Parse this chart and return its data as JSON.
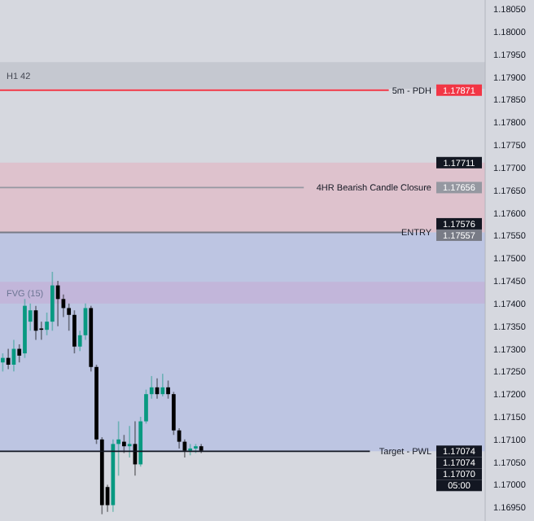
{
  "chart_data": {
    "type": "candlestick",
    "categories": [
      null,
      null,
      null,
      null,
      null,
      null,
      null,
      null,
      null,
      null,
      null,
      null,
      null,
      null,
      null,
      null,
      null,
      null,
      null,
      null,
      null,
      null,
      null,
      null,
      null,
      null,
      null,
      null,
      null,
      null,
      null,
      null,
      null,
      null,
      null,
      null,
      null,
      null,
      null,
      null,
      null,
      null,
      null,
      null,
      null,
      null,
      null,
      null,
      null,
      null,
      null,
      null,
      null,
      null,
      null,
      null,
      null,
      null,
      null,
      null,
      null,
      null,
      null,
      null,
      null,
      null,
      null,
      null,
      null,
      null,
      null,
      null,
      null,
      null,
      null,
      null,
      null,
      null,
      null,
      null,
      null,
      null,
      null,
      null,
      null,
      null,
      null,
      null
    ],
    "ohlc": [
      [
        1.1727,
        1.1729,
        1.1725,
        1.1728
      ],
      [
        1.1728,
        1.173,
        1.17255,
        1.17265
      ],
      [
        1.17265,
        1.1732,
        1.1725,
        1.173
      ],
      [
        1.173,
        1.1731,
        1.1727,
        1.17285
      ],
      [
        1.1729,
        1.1741,
        1.1728,
        1.17395
      ],
      [
        1.1736,
        1.174,
        1.1734,
        1.17385
      ],
      [
        1.17385,
        1.17395,
        1.1732,
        1.1734
      ],
      [
        1.17345,
        1.1736,
        1.1732,
        1.17342
      ],
      [
        1.17342,
        1.1738,
        1.1733,
        1.1736
      ],
      [
        1.1736,
        1.1747,
        1.1734,
        1.1744
      ],
      [
        1.1744,
        1.1745,
        1.1735,
        1.1741
      ],
      [
        1.1741,
        1.1742,
        1.1737,
        1.1739
      ],
      [
        1.1739,
        1.174,
        1.1734,
        1.17375
      ],
      [
        1.17375,
        1.17385,
        1.1729,
        1.17305
      ],
      [
        1.17305,
        1.1734,
        1.17295,
        1.1733
      ],
      [
        1.1733,
        1.174,
        1.1732,
        1.1739
      ],
      [
        1.1739,
        1.17395,
        1.1725,
        1.1726
      ],
      [
        1.1726,
        1.17265,
        1.1709,
        1.171
      ],
      [
        1.171,
        1.17105,
        1.16935,
        1.16955
      ],
      [
        1.16995,
        1.17,
        1.1694,
        1.16955
      ],
      [
        1.16955,
        1.171,
        1.1694,
        1.1709
      ],
      [
        1.1709,
        1.1714,
        1.1702,
        1.171
      ],
      [
        1.17095,
        1.1711,
        1.1707,
        1.17085
      ],
      [
        1.17085,
        1.1713,
        1.1706,
        1.1709
      ],
      [
        1.1709,
        1.1714,
        1.1702,
        1.17045
      ],
      [
        1.17045,
        1.1715,
        1.1704,
        1.1714
      ],
      [
        1.1714,
        1.1721,
        1.17135,
        1.172
      ],
      [
        1.172,
        1.1724,
        1.1719,
        1.17215
      ],
      [
        1.17215,
        1.17235,
        1.1719,
        1.172
      ],
      [
        1.172,
        1.17245,
        1.17195,
        1.17215
      ],
      [
        1.17215,
        1.1723,
        1.1719,
        1.172
      ],
      [
        1.172,
        1.17205,
        1.1711,
        1.1712
      ],
      [
        1.1712,
        1.17125,
        1.1708,
        1.17095
      ],
      [
        1.17095,
        1.171,
        1.1706,
        1.17075
      ],
      [
        1.17075,
        1.1709,
        1.17065,
        1.1708
      ],
      [
        1.1708,
        1.1709,
        1.1707,
        1.17085
      ],
      [
        1.17085,
        1.1709,
        1.1707,
        1.17075
      ],
      null,
      null,
      null,
      null,
      null,
      null,
      null,
      null,
      null,
      null,
      null,
      null,
      null,
      null,
      null,
      null,
      null,
      null,
      null,
      null,
      null,
      null,
      null,
      null,
      null,
      null,
      null,
      null,
      null,
      null,
      null,
      null,
      null,
      null,
      null,
      null,
      null,
      null,
      null,
      null,
      null,
      null,
      null,
      null,
      null,
      null,
      null,
      null,
      null,
      null,
      null
    ],
    "colors": [
      "#089981",
      "#000000",
      "#089981",
      "#000000",
      "#089981",
      "#089981",
      "#000000",
      "#000000",
      "#089981",
      "#089981",
      "#000000",
      "#000000",
      "#000000",
      "#000000",
      "#089981",
      "#089981",
      "#000000",
      "#000000",
      "#000000",
      "#000000",
      "#089981",
      "#089981",
      "#000000",
      "#089981",
      "#000000",
      "#089981",
      "#089981",
      "#089981",
      "#000000",
      "#089981",
      "#000000",
      "#000000",
      "#000000",
      "#000000",
      "#089981",
      "#089981",
      "#000000",
      null,
      null,
      null,
      null,
      null,
      null,
      null,
      null,
      null,
      null,
      null,
      null,
      null,
      null,
      null,
      null,
      null,
      null,
      null,
      null,
      null,
      null,
      null,
      null,
      null,
      null,
      null,
      null,
      null,
      null,
      null,
      null,
      null,
      null,
      null,
      null,
      null,
      null,
      null,
      null,
      null,
      null,
      null,
      null,
      null,
      null,
      null,
      null,
      null,
      null,
      null
    ],
    "annotations": [
      "1.17871",
      "1.17711",
      "1.17656",
      "1.17576",
      "1.17557",
      "1.17074",
      "1.17074",
      "1.17070",
      "05:00"
    ],
    "ylim": [
      1.1692,
      1.1807
    ],
    "yticks": [
      {
        "value": 1.1695,
        "label": "1.16950"
      },
      {
        "value": 1.17,
        "label": "1.17000"
      },
      {
        "value": 1.1705,
        "label": "1.17050"
      },
      {
        "value": 1.171,
        "label": "1.17100"
      },
      {
        "value": 1.1715,
        "label": "1.17150"
      },
      {
        "value": 1.172,
        "label": "1.17200"
      },
      {
        "value": 1.1725,
        "label": "1.17250"
      },
      {
        "value": 1.173,
        "label": "1.17300"
      },
      {
        "value": 1.1735,
        "label": "1.17350"
      },
      {
        "value": 1.174,
        "label": "1.17400"
      },
      {
        "value": 1.1745,
        "label": "1.17450"
      },
      {
        "value": 1.175,
        "label": "1.17500"
      },
      {
        "value": 1.1755,
        "label": "1.17550"
      },
      {
        "value": 1.176,
        "label": "1.17600"
      },
      {
        "value": 1.1765,
        "label": "1.17650"
      },
      {
        "value": 1.177,
        "label": "1.17700"
      },
      {
        "value": 1.1775,
        "label": "1.17750"
      },
      {
        "value": 1.178,
        "label": "1.17800"
      },
      {
        "value": 1.1785,
        "label": "1.17850"
      },
      {
        "value": 1.179,
        "label": "1.17900"
      },
      {
        "value": 1.1795,
        "label": "1.17950"
      },
      {
        "value": 1.18,
        "label": "1.18000"
      },
      {
        "value": 1.1805,
        "label": "1.18050"
      }
    ],
    "tick_labels": "y",
    "grid": false,
    "ref_lines": [
      {
        "axis": "y",
        "value": 1.17871,
        "label": "5m - PDH",
        "color": "#f23645"
      },
      {
        "axis": "y",
        "value": 1.17656,
        "label": "4HR Bearish Candle Closure",
        "color": "#9598a1"
      },
      {
        "axis": "y",
        "value": 1.17557,
        "label": "ENTRY",
        "color": "#787b86"
      },
      {
        "axis": "y",
        "value": 1.17074,
        "label": "Target - PWL",
        "color": "#131722"
      }
    ],
    "bands": [
      {
        "axis": "y",
        "from": 1.17874,
        "to": 1.17933,
        "label": "H1 42",
        "color": "#b2b5be"
      },
      {
        "axis": "y",
        "from": 1.174,
        "to": 1.17448,
        "label": "FVG (15)",
        "color": "#e89bbd"
      },
      {
        "axis": "y",
        "from": 1.17557,
        "to": 1.17711,
        "color": "#e8a8b8"
      },
      {
        "axis": "y",
        "from": 1.17074,
        "to": 1.17557,
        "color": "#9fb0e6"
      }
    ]
  }
}
